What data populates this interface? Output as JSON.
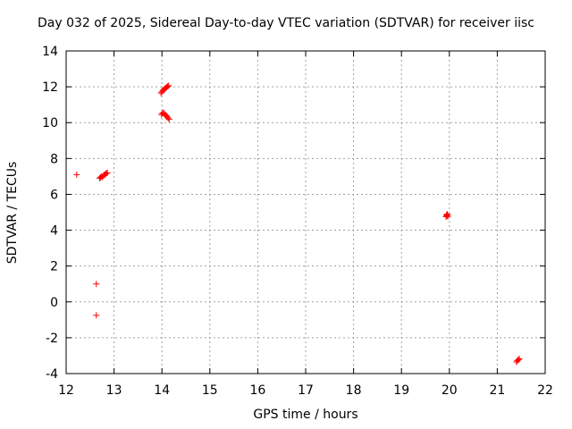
{
  "chart_data": {
    "type": "scatter",
    "title": "Day 032 of 2025, Sidereal Day-to-day VTEC variation (SDTVAR) for receiver iisc",
    "xlabel": "GPS time / hours",
    "ylabel": "SDTVAR / TECUs",
    "xlim": [
      12,
      22
    ],
    "ylim": [
      -4,
      14
    ],
    "xticks": [
      "12",
      "13",
      "14",
      "15",
      "16",
      "17",
      "18",
      "19",
      "20",
      "21",
      "22"
    ],
    "yticks": [
      "-4",
      "-2",
      "0",
      "2",
      "4",
      "6",
      "8",
      "10",
      "12",
      "14"
    ],
    "grid": true,
    "marker": "+",
    "color": "#ff0000",
    "series": [
      {
        "points": [
          [
            12.22,
            7.1
          ],
          [
            12.63,
            1.0
          ],
          [
            12.63,
            -0.75
          ],
          [
            12.7,
            6.9
          ],
          [
            12.72,
            6.95
          ],
          [
            12.74,
            7.0
          ],
          [
            12.76,
            6.97
          ],
          [
            12.78,
            7.05
          ],
          [
            12.8,
            7.1
          ],
          [
            12.82,
            7.12
          ],
          [
            12.84,
            7.18
          ],
          [
            12.86,
            7.2
          ],
          [
            13.98,
            11.65
          ],
          [
            14.0,
            11.72
          ],
          [
            14.02,
            11.8
          ],
          [
            14.04,
            11.85
          ],
          [
            14.06,
            11.9
          ],
          [
            14.08,
            11.93
          ],
          [
            14.1,
            11.98
          ],
          [
            14.12,
            12.03
          ],
          [
            14.14,
            12.06
          ],
          [
            13.99,
            10.45
          ],
          [
            14.01,
            10.52
          ],
          [
            14.03,
            10.55
          ],
          [
            14.05,
            10.5
          ],
          [
            14.07,
            10.42
          ],
          [
            14.09,
            10.38
          ],
          [
            14.11,
            10.32
          ],
          [
            14.13,
            10.25
          ],
          [
            14.15,
            10.18
          ],
          [
            19.93,
            4.75
          ],
          [
            19.94,
            4.85
          ],
          [
            19.95,
            4.8
          ],
          [
            19.96,
            4.9
          ],
          [
            19.97,
            4.78
          ],
          [
            21.4,
            -3.35
          ],
          [
            21.42,
            -3.28
          ],
          [
            21.44,
            -3.22
          ],
          [
            21.46,
            -3.18
          ]
        ]
      }
    ]
  }
}
